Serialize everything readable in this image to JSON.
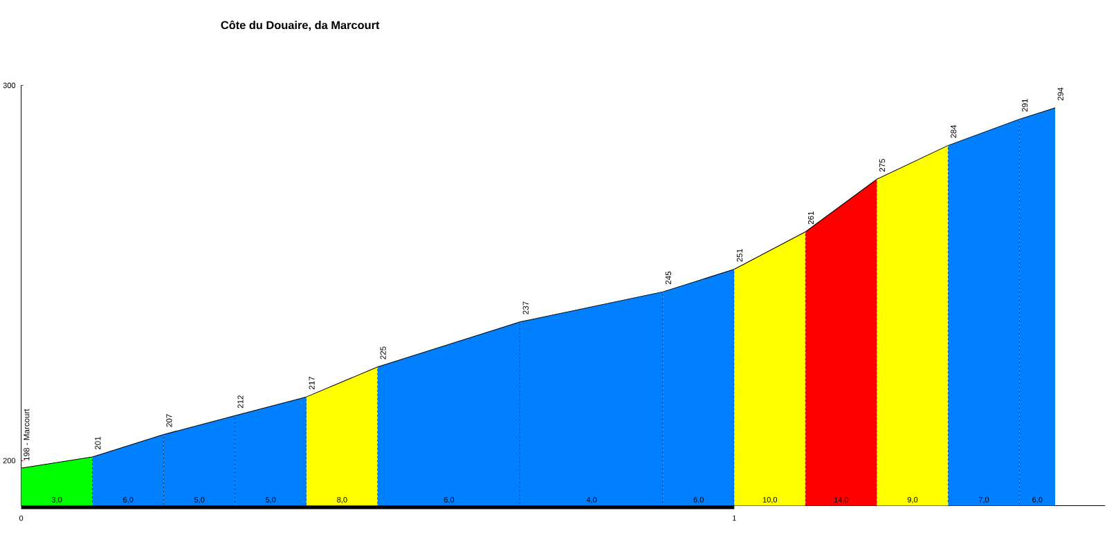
{
  "chart_data": {
    "type": "area",
    "title": "Côte du Douaire, da Marcourt",
    "xlim": [
      0,
      1.52
    ],
    "xticks": [
      0,
      1
    ],
    "ylim": [
      188,
      300
    ],
    "yticks": [
      200,
      300
    ],
    "series": [
      {
        "color": "#00ff00",
        "x": [
          0,
          0.1
        ],
        "values": [
          198,
          201
        ],
        "value_labels": [
          "198 - Marcourt",
          "201"
        ]
      },
      {
        "color": "#0080ff",
        "x": [
          0.1,
          0.2
        ],
        "values": [
          201,
          207
        ],
        "value_labels": [
          null,
          "207"
        ]
      },
      {
        "color": "#0080ff",
        "x": [
          0.2,
          0.3
        ],
        "values": [
          207,
          212
        ],
        "value_labels": [
          null,
          "212"
        ]
      },
      {
        "color": "#0080ff",
        "x": [
          0.3,
          0.4
        ],
        "values": [
          212,
          217
        ],
        "value_labels": [
          null,
          "217"
        ]
      },
      {
        "color": "#ffff00",
        "x": [
          0.4,
          0.5
        ],
        "values": [
          217,
          225
        ],
        "value_labels": [
          null,
          "225"
        ]
      },
      {
        "color": "#0080ff",
        "x": [
          0.5,
          0.7
        ],
        "values": [
          225,
          237
        ],
        "value_labels": [
          null,
          "237"
        ]
      },
      {
        "color": "#0080ff",
        "x": [
          0.7,
          0.9
        ],
        "values": [
          237,
          245
        ],
        "value_labels": [
          null,
          "245"
        ]
      },
      {
        "color": "#0080ff",
        "x": [
          0.9,
          1.0
        ],
        "values": [
          245,
          251
        ],
        "value_labels": [
          null,
          "251"
        ]
      },
      {
        "color": "#ffff00",
        "x": [
          1.0,
          1.1
        ],
        "values": [
          251,
          261
        ],
        "value_labels": [
          null,
          "261"
        ]
      },
      {
        "color": "#ff0000",
        "x": [
          1.1,
          1.2
        ],
        "values": [
          261,
          275
        ],
        "value_labels": [
          null,
          "275"
        ]
      },
      {
        "color": "#ffff00",
        "x": [
          1.2,
          1.3
        ],
        "values": [
          275,
          284
        ],
        "value_labels": [
          null,
          "284"
        ]
      },
      {
        "color": "#0080ff",
        "x": [
          1.3,
          1.4
        ],
        "values": [
          284,
          291
        ],
        "value_labels": [
          null,
          "291"
        ]
      },
      {
        "color": "#0080ff",
        "x": [
          1.4,
          1.45
        ],
        "values": [
          291,
          294
        ],
        "value_labels": [
          null,
          "294"
        ]
      }
    ],
    "annotations": [
      "3,0",
      "6,0",
      "5,0",
      "5,0",
      "8,0",
      "6,0",
      "4,0",
      "6,0",
      "10,0",
      "14,0",
      "9,0",
      "7,0",
      "6,0"
    ]
  }
}
